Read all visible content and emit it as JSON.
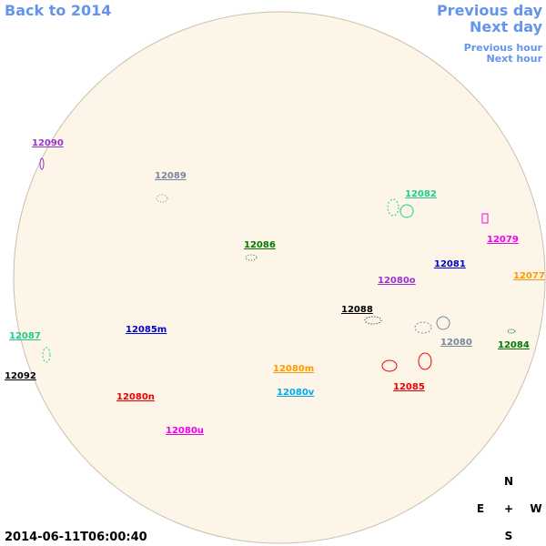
{
  "nav": {
    "back": "Back to 2014",
    "prev_day": "Previous day",
    "next_day": "Next day",
    "prev_hour": "Previous hour",
    "next_hour": "Next hour"
  },
  "timestamp": "2014-06-11T06:00:40",
  "compass": {
    "n": "N",
    "e": "E",
    "center": "+",
    "w": "W",
    "s": "S"
  },
  "regions": [
    {
      "label": "12090",
      "color": "#9933cc"
    },
    {
      "label": "12089",
      "color": "#778899"
    },
    {
      "label": "12082",
      "color": "#22cc88"
    },
    {
      "label": "12079",
      "color": "#ee00ee"
    },
    {
      "label": "12086",
      "color": "#007700"
    },
    {
      "label": "12081",
      "color": "#0000cc"
    },
    {
      "label": "12077",
      "color": "#ff9900"
    },
    {
      "label": "12080o",
      "color": "#9933cc"
    },
    {
      "label": "12088",
      "color": "#000000"
    },
    {
      "label": "12085m",
      "color": "#0000cc"
    },
    {
      "label": "12087",
      "color": "#22cc88"
    },
    {
      "label": "12080",
      "color": "#778899"
    },
    {
      "label": "12084",
      "color": "#007700"
    },
    {
      "label": "12092",
      "color": "#000000"
    },
    {
      "label": "12080m",
      "color": "#ff9900"
    },
    {
      "label": "12085",
      "color": "#ee0000"
    },
    {
      "label": "12080v",
      "color": "#00aaee"
    },
    {
      "label": "12080n",
      "color": "#ee0000"
    },
    {
      "label": "12080u",
      "color": "#ee00ee"
    }
  ]
}
